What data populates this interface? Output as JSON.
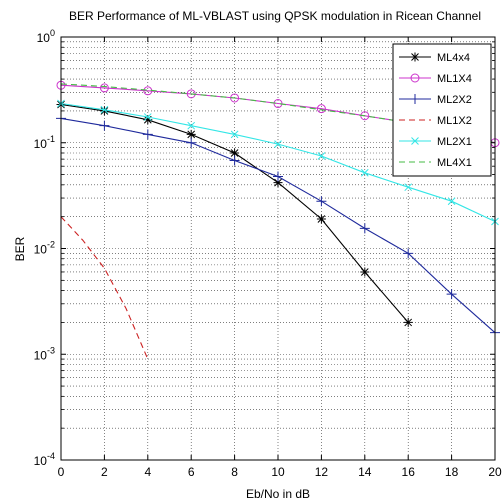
{
  "chart_data": {
    "type": "line",
    "title": "BER Performance of ML-VBLAST using QPSK modulation in Ricean Channel",
    "xlabel": "Eb/No in dB",
    "ylabel": "BER",
    "xlim": [
      0,
      20
    ],
    "ylim": [
      0.0001,
      1
    ],
    "yscale": "log",
    "grid": true,
    "legend_position": "top-right",
    "x_ticks": [
      "0",
      "2",
      "4",
      "6",
      "8",
      "10",
      "12",
      "14",
      "16",
      "18",
      "20"
    ],
    "y_ticks": [
      {
        "base": "10",
        "exp": "0"
      },
      {
        "base": "10",
        "exp": "-1"
      },
      {
        "base": "10",
        "exp": "-2"
      },
      {
        "base": "10",
        "exp": "-3"
      },
      {
        "base": "10",
        "exp": "-4"
      }
    ],
    "series": [
      {
        "name": "ML4x4",
        "color": "#000000",
        "marker": "star",
        "dash": "solid",
        "x": [
          0,
          2,
          4,
          6,
          8,
          10,
          12,
          14,
          16
        ],
        "y": [
          0.23,
          0.2,
          0.165,
          0.12,
          0.08,
          0.042,
          0.019,
          0.006,
          0.002
        ]
      },
      {
        "name": "ML1X4",
        "color": "#cc33cc",
        "marker": "circle",
        "dash": "solid",
        "x": [
          0,
          2,
          4,
          6,
          8,
          10,
          12,
          14,
          16,
          18,
          20
        ],
        "y": [
          0.35,
          0.33,
          0.31,
          0.29,
          0.265,
          0.235,
          0.21,
          0.18,
          0.155,
          0.13,
          0.1
        ]
      },
      {
        "name": "ML2X2",
        "color": "#1f2a9c",
        "marker": "plus",
        "dash": "solid",
        "x": [
          0,
          2,
          4,
          6,
          8,
          10,
          12,
          14,
          16,
          18,
          20
        ],
        "y": [
          0.17,
          0.145,
          0.12,
          0.1,
          0.068,
          0.048,
          0.028,
          0.0155,
          0.009,
          0.0037,
          0.0016
        ]
      },
      {
        "name": "ML1X2",
        "color": "#cc2222",
        "marker": "none",
        "dash": "dashed",
        "x": [
          0,
          1,
          2,
          3,
          4
        ],
        "y": [
          0.02,
          0.012,
          0.0065,
          0.0027,
          0.0009
        ]
      },
      {
        "name": "ML2X1",
        "color": "#33e6e6",
        "marker": "x",
        "dash": "solid",
        "x": [
          0,
          2,
          4,
          6,
          8,
          10,
          12,
          14,
          16,
          18,
          20
        ],
        "y": [
          0.235,
          0.205,
          0.175,
          0.145,
          0.12,
          0.097,
          0.075,
          0.052,
          0.038,
          0.028,
          0.018
        ]
      },
      {
        "name": "ML4X1",
        "color": "#44bb44",
        "marker": "none",
        "dash": "dashed",
        "x": [
          0,
          2,
          4,
          6,
          8,
          10,
          12,
          14,
          16,
          18,
          20
        ],
        "y": [
          0.36,
          0.34,
          0.315,
          0.29,
          0.265,
          0.235,
          0.205,
          0.18,
          0.155,
          0.13,
          0.1
        ]
      }
    ]
  }
}
